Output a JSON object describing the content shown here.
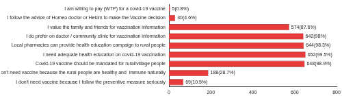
{
  "chart_data": {
    "type": "bar",
    "orientation": "horizontal",
    "categories": [
      "I am willing to pay (WTP) for a covid-19 vaccine",
      "I follow the advice of Homeo doctor or Hekim to make the Vaccine decision",
      "I value the family and friends for vaccination information",
      "I do prefer on doctor / community clinic for vaccination information",
      "Local pharmacies can provide health education campaign to rural people",
      "I need adequate health education on covid-19 vaccination",
      "Covid-19 vaccine should be mandated for rural/village people",
      "I don't need vaccine because the rural people are healthy and  immune naturally",
      "I don't need vaccine because I follow the preventive measure seriously"
    ],
    "values": [
      5,
      30,
      574,
      642,
      644,
      652,
      648,
      188,
      69
    ],
    "value_labels": [
      "5(0.8%)",
      "30(4.6%)",
      "574(87.6%)",
      "642(98%)",
      "644(98.3%)",
      "652(99.5%)",
      "648(98.9%)",
      "188(28.7%)",
      "69(10.5%)"
    ],
    "data_labels": true,
    "color": "#e8393b",
    "xlim": [
      0,
      800
    ],
    "xticks": [
      0,
      200,
      400,
      600,
      800
    ],
    "grid": false
  }
}
